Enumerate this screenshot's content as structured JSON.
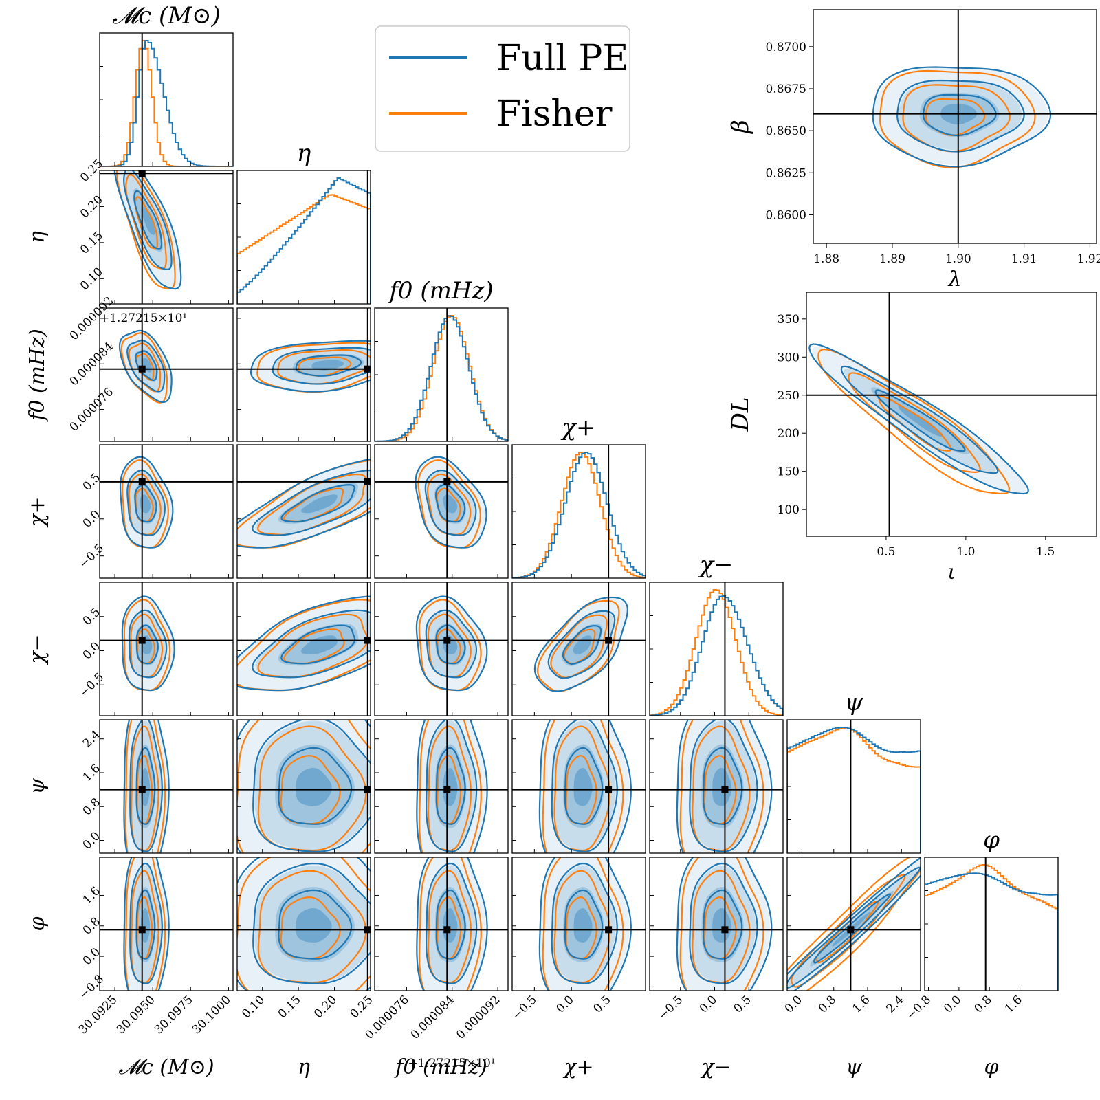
{
  "chart_data": {
    "type": "corner",
    "title": "",
    "colors": {
      "full_pe": "#1f77b4",
      "fisher": "#ff7f0e",
      "truth": "#000000"
    },
    "legend": {
      "placement": "top-center",
      "entries": [
        {
          "name": "Full PE",
          "color": "#1f77b4"
        },
        {
          "name": "Fisher",
          "color": "#ff7f0e"
        }
      ]
    },
    "parameters": [
      {
        "key": "Mc",
        "title": "𝓜c (M⊙)",
        "label": "𝓜c (M⊙)",
        "range": [
          30.0915,
          30.1003
        ],
        "truth": 30.0943,
        "ticks": [
          30.0925,
          30.095,
          30.0975,
          30.1
        ],
        "tick_labels": [
          "30.0925",
          "30.0950",
          "30.0975",
          "30.1000"
        ],
        "offset": ""
      },
      {
        "key": "eta",
        "title": "η",
        "label": "η",
        "range": [
          0.065,
          0.25
        ],
        "truth": 0.246,
        "ticks": [
          0.1,
          0.15,
          0.2,
          0.25
        ],
        "tick_labels": [
          "0.10",
          "0.15",
          "0.20",
          "0.25"
        ],
        "offset": ""
      },
      {
        "key": "f0",
        "title": "f0 (mHz)",
        "label": "f0 (mHz)",
        "range": [
          7.04e-05,
          9.38e-05
        ],
        "truth": 8.31e-05,
        "ticks": [
          7.6e-05,
          8.4e-05,
          9.2e-05
        ],
        "tick_labels": [
          "0.000076",
          "0.000084",
          "0.000092"
        ],
        "offset": "+1.27215×10¹"
      },
      {
        "key": "chi_plus",
        "title": "χ+",
        "label": "χ+",
        "range": [
          -0.8,
          1.0
        ],
        "truth": 0.5,
        "ticks": [
          -0.5,
          0.0,
          0.5
        ],
        "tick_labels": [
          "−0.5",
          "0.0",
          "0.5"
        ],
        "offset": ""
      },
      {
        "key": "chi_minus",
        "title": "χ−",
        "label": "χ−",
        "range": [
          -0.95,
          1.0
        ],
        "truth": 0.15,
        "ticks": [
          -0.5,
          0.0,
          0.5
        ],
        "tick_labels": [
          "−0.5",
          "0.0",
          "0.5"
        ],
        "offset": ""
      },
      {
        "key": "psi",
        "title": "ψ",
        "label": "ψ",
        "range": [
          -0.3,
          2.85
        ],
        "truth": 1.2,
        "ticks": [
          0.0,
          0.8,
          1.6,
          2.4
        ],
        "tick_labels": [
          "0.0",
          "0.8",
          "1.6",
          "2.4"
        ],
        "offset": ""
      },
      {
        "key": "phi",
        "title": "φ",
        "label": "φ",
        "range": [
          -0.9,
          2.6
        ],
        "truth": 0.7,
        "ticks": [
          -0.8,
          0.0,
          0.8,
          1.6
        ],
        "tick_labels": [
          "−0.8",
          "0.0",
          "0.8",
          "1.6"
        ],
        "offset": ""
      }
    ],
    "pairs": [
      {
        "row": 1,
        "col": 0,
        "mean": [
          30.0947,
          0.18
        ],
        "sd": [
          0.0009,
          0.04
        ],
        "corr": -0.8
      },
      {
        "row": 2,
        "col": 0,
        "mean": [
          30.0946,
          8.38e-05
        ],
        "sd": [
          0.0007,
          2.5e-06
        ],
        "corr": -0.5
      },
      {
        "row": 2,
        "col": 1,
        "mean": [
          0.19,
          8.38e-05
        ],
        "sd": [
          0.045,
          1.8e-06
        ],
        "corr": 0.25
      },
      {
        "row": 3,
        "col": 0,
        "mean": [
          30.0945,
          0.2
        ],
        "sd": [
          0.0007,
          0.25
        ],
        "corr": -0.2
      },
      {
        "row": 3,
        "col": 1,
        "mean": [
          0.18,
          0.2
        ],
        "sd": [
          0.05,
          0.25
        ],
        "corr": 0.75
      },
      {
        "row": 3,
        "col": 2,
        "mean": [
          8.36e-05,
          0.2
        ],
        "sd": [
          2.5e-06,
          0.25
        ],
        "corr": -0.35
      },
      {
        "row": 4,
        "col": 0,
        "mean": [
          30.0946,
          0.08
        ],
        "sd": [
          0.0007,
          0.28
        ],
        "corr": -0.1
      },
      {
        "row": 4,
        "col": 1,
        "mean": [
          0.18,
          0.08
        ],
        "sd": [
          0.05,
          0.28
        ],
        "corr": 0.55
      },
      {
        "row": 4,
        "col": 2,
        "mean": [
          8.36e-05,
          0.08
        ],
        "sd": [
          2.5e-06,
          0.28
        ],
        "corr": -0.2
      },
      {
        "row": 4,
        "col": 3,
        "mean": [
          0.15,
          0.08
        ],
        "sd": [
          0.25,
          0.28
        ],
        "corr": 0.6
      },
      {
        "row": 5,
        "col": 0,
        "mean": [
          30.0945,
          1.25
        ],
        "sd": [
          0.0006,
          0.9
        ],
        "corr": 0.0
      },
      {
        "row": 5,
        "col": 1,
        "mean": [
          0.17,
          1.25
        ],
        "sd": [
          0.05,
          0.9
        ],
        "corr": 0.0
      },
      {
        "row": 5,
        "col": 2,
        "mean": [
          8.36e-05,
          1.25
        ],
        "sd": [
          2.5e-06,
          0.9
        ],
        "corr": 0.0
      },
      {
        "row": 5,
        "col": 3,
        "mean": [
          0.15,
          1.25
        ],
        "sd": [
          0.25,
          0.9
        ],
        "corr": 0.0
      },
      {
        "row": 5,
        "col": 4,
        "mean": [
          0.1,
          1.25
        ],
        "sd": [
          0.28,
          0.9
        ],
        "corr": 0.0
      },
      {
        "row": 6,
        "col": 0,
        "mean": [
          30.0945,
          0.8
        ],
        "sd": [
          0.0006,
          0.9
        ],
        "corr": 0.0
      },
      {
        "row": 6,
        "col": 1,
        "mean": [
          0.17,
          0.8
        ],
        "sd": [
          0.05,
          0.9
        ],
        "corr": 0.0
      },
      {
        "row": 6,
        "col": 2,
        "mean": [
          8.36e-05,
          0.8
        ],
        "sd": [
          2.5e-06,
          0.9
        ],
        "corr": 0.0
      },
      {
        "row": 6,
        "col": 3,
        "mean": [
          0.15,
          0.8
        ],
        "sd": [
          0.25,
          0.9
        ],
        "corr": 0.0
      },
      {
        "row": 6,
        "col": 4,
        "mean": [
          0.1,
          0.8
        ],
        "sd": [
          0.28,
          0.9
        ],
        "corr": 0.0
      },
      {
        "row": 6,
        "col": 5,
        "mean": [
          1.2,
          0.7
        ],
        "sd": [
          0.9,
          0.9
        ],
        "corr": 0.985
      }
    ],
    "extra_panels": [
      {
        "key": "lambda_beta",
        "x_label": "λ",
        "y_label": "β",
        "xlim": [
          1.878,
          1.921
        ],
        "ylim": [
          0.8583,
          0.8722
        ],
        "truth": [
          1.9,
          0.866
        ],
        "mean": [
          1.9,
          0.866
        ],
        "sd": [
          0.0055,
          0.0012
        ],
        "corr": 0.0,
        "xticks": [
          1.88,
          1.89,
          1.9,
          1.91,
          1.92
        ],
        "xtick_labels": [
          "1.88",
          "1.89",
          "1.90",
          "1.91",
          "1.92"
        ],
        "yticks": [
          0.86,
          0.8625,
          0.865,
          0.8675,
          0.87
        ],
        "ytick_labels": [
          "0.8600",
          "0.8625",
          "0.8650",
          "0.8675",
          "0.8700"
        ]
      },
      {
        "key": "iota_DL",
        "x_label": "ι",
        "y_label": "DL",
        "xlim": [
          0.0,
          1.82
        ],
        "ylim": [
          65,
          385
        ],
        "truth": [
          0.52,
          250
        ],
        "mean": [
          0.72,
          215
        ],
        "sd": [
          0.28,
          40
        ],
        "corr": -0.95,
        "xticks": [
          0.5,
          1.0,
          1.5
        ],
        "xtick_labels": [
          "0.5",
          "1.0",
          "1.5"
        ],
        "yticks": [
          100,
          150,
          200,
          250,
          300,
          350
        ],
        "ytick_labels": [
          "100",
          "150",
          "200",
          "250",
          "300",
          "350"
        ]
      }
    ]
  }
}
